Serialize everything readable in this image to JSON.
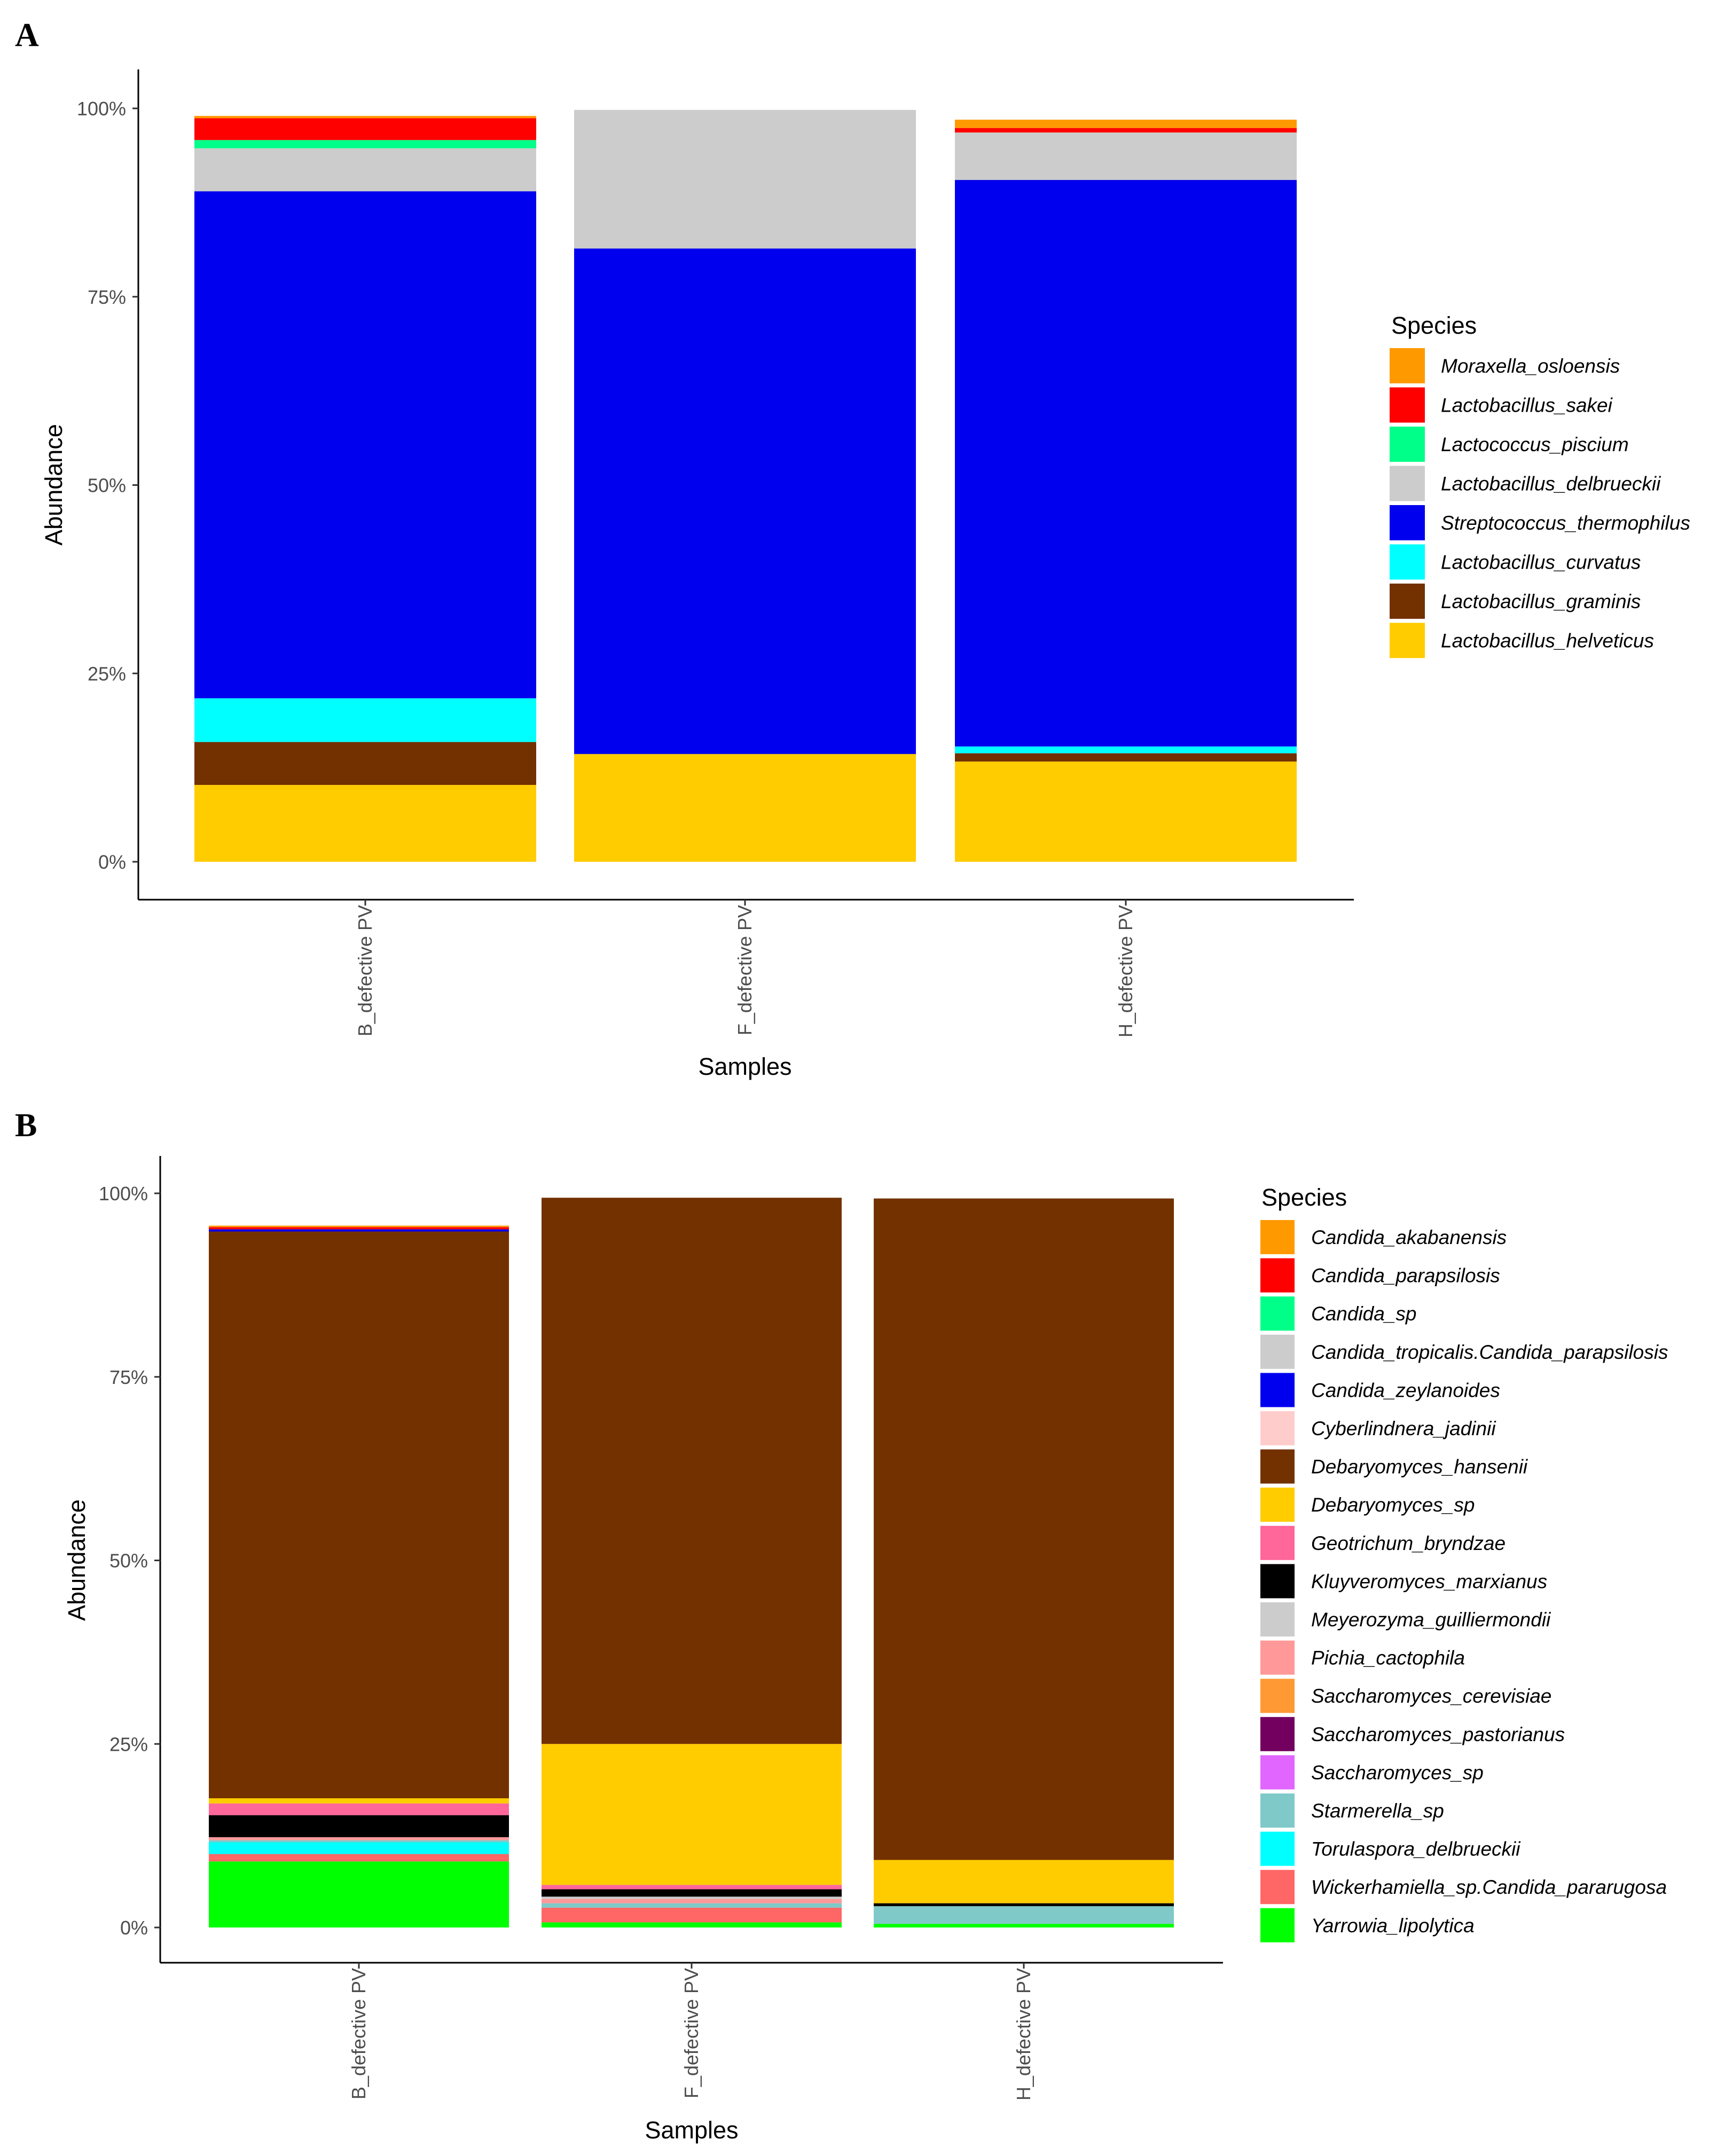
{
  "chart_data": [
    {
      "panel": "A",
      "type": "bar",
      "stacked": true,
      "categories": [
        "B_defective PV",
        "F_defective PV",
        "H_defective PV"
      ],
      "xlabel": "Samples",
      "ylabel": "Abundance",
      "ylim": [
        0,
        100
      ],
      "yticks": [
        "0%",
        "25%",
        "50%",
        "75%",
        "100%"
      ],
      "legend_title": "Species",
      "legend_position": "right",
      "series": [
        {
          "name": "Lactobacillus_helveticus",
          "color": "#FFCC00",
          "values": [
            10.2,
            14.3,
            13.3
          ]
        },
        {
          "name": "Lactobacillus_graminis",
          "color": "#733100",
          "values": [
            5.7,
            0.0,
            1.1
          ]
        },
        {
          "name": "Lactobacillus_curvatus",
          "color": "#00FFFF",
          "values": [
            5.8,
            0.0,
            0.9
          ]
        },
        {
          "name": "Streptococcus_thermophilus",
          "color": "#0000EE",
          "values": [
            67.3,
            67.1,
            75.2
          ]
        },
        {
          "name": "Lactobacillus_delbrueckii",
          "color": "#CCCCCC",
          "values": [
            5.7,
            18.4,
            6.3
          ]
        },
        {
          "name": "Lactococcus_piscium",
          "color": "#00FF88",
          "values": [
            1.1,
            0.0,
            0.0
          ]
        },
        {
          "name": "Lactobacillus_sakei",
          "color": "#FF0000",
          "values": [
            2.9,
            0.0,
            0.6
          ]
        },
        {
          "name": "Moraxella_osloensis",
          "color": "#FF9900",
          "values": [
            0.3,
            0.0,
            1.1
          ]
        }
      ]
    },
    {
      "panel": "B",
      "type": "bar",
      "stacked": true,
      "categories": [
        "B_defective PV",
        "F_defective PV",
        "H_defective PV"
      ],
      "xlabel": "Samples",
      "ylabel": "Abundance",
      "ylim": [
        0,
        100
      ],
      "yticks": [
        "0%",
        "25%",
        "50%",
        "75%",
        "100%"
      ],
      "legend_title": "Species",
      "legend_position": "right",
      "series": [
        {
          "name": "Yarrowia_lipolytica",
          "color": "#00FF00",
          "values": [
            9.0,
            0.7,
            0.5
          ]
        },
        {
          "name": "Wickerhamiella_sp.Candida_pararugosa",
          "color": "#FF6666",
          "values": [
            1.0,
            2.0,
            0.0
          ]
        },
        {
          "name": "Torulaspora_delbrueckii",
          "color": "#00FFFF",
          "values": [
            1.6,
            0.0,
            0.0
          ]
        },
        {
          "name": "Starmerella_sp",
          "color": "#7FC9C9",
          "values": [
            0.3,
            0.6,
            2.4
          ]
        },
        {
          "name": "Saccharomyces_sp",
          "color": "#E066FF",
          "values": [
            0.0,
            0.0,
            0.0
          ]
        },
        {
          "name": "Saccharomyces_pastorianus",
          "color": "#73005F",
          "values": [
            0.0,
            0.0,
            0.0
          ]
        },
        {
          "name": "Saccharomyces_cerevisiae",
          "color": "#FF9933",
          "values": [
            0.0,
            0.0,
            0.0
          ]
        },
        {
          "name": "Pichia_cactophila",
          "color": "#FF9999",
          "values": [
            0.4,
            0.6,
            0.0
          ]
        },
        {
          "name": "Meyerozyma_guilliermondii",
          "color": "#CCCCCC",
          "values": [
            0.0,
            0.3,
            0.0
          ]
        },
        {
          "name": "Kluyveromyces_marxianus",
          "color": "#000000",
          "values": [
            3.0,
            1.0,
            0.4
          ]
        },
        {
          "name": "Geotrichum_bryndzae",
          "color": "#FF6699",
          "values": [
            1.6,
            0.6,
            0.0
          ]
        },
        {
          "name": "Debaryomyces_sp",
          "color": "#FFCC00",
          "values": [
            0.7,
            19.2,
            5.9
          ]
        },
        {
          "name": "Debaryomyces_hansenii",
          "color": "#733100",
          "values": [
            77.2,
            74.4,
            90.1
          ]
        },
        {
          "name": "Cyberlindnera_jadinii",
          "color": "#FFCCCC",
          "values": [
            0.0,
            0.0,
            0.0
          ]
        },
        {
          "name": "Candida_zeylanoides",
          "color": "#0000EE",
          "values": [
            0.3,
            0.0,
            0.0
          ]
        },
        {
          "name": "Candida_tropicalis.Candida_parapsilosis",
          "color": "#CCCCCC",
          "values": [
            0.0,
            0.0,
            0.0
          ]
        },
        {
          "name": "Candida_sp",
          "color": "#00FF88",
          "values": [
            0.0,
            0.0,
            0.0
          ]
        },
        {
          "name": "Candida_parapsilosis",
          "color": "#FF0000",
          "values": [
            0.3,
            0.0,
            0.0
          ]
        },
        {
          "name": "Candida_akabanensis",
          "color": "#FF9900",
          "values": [
            0.2,
            0.0,
            0.0
          ]
        }
      ]
    }
  ]
}
